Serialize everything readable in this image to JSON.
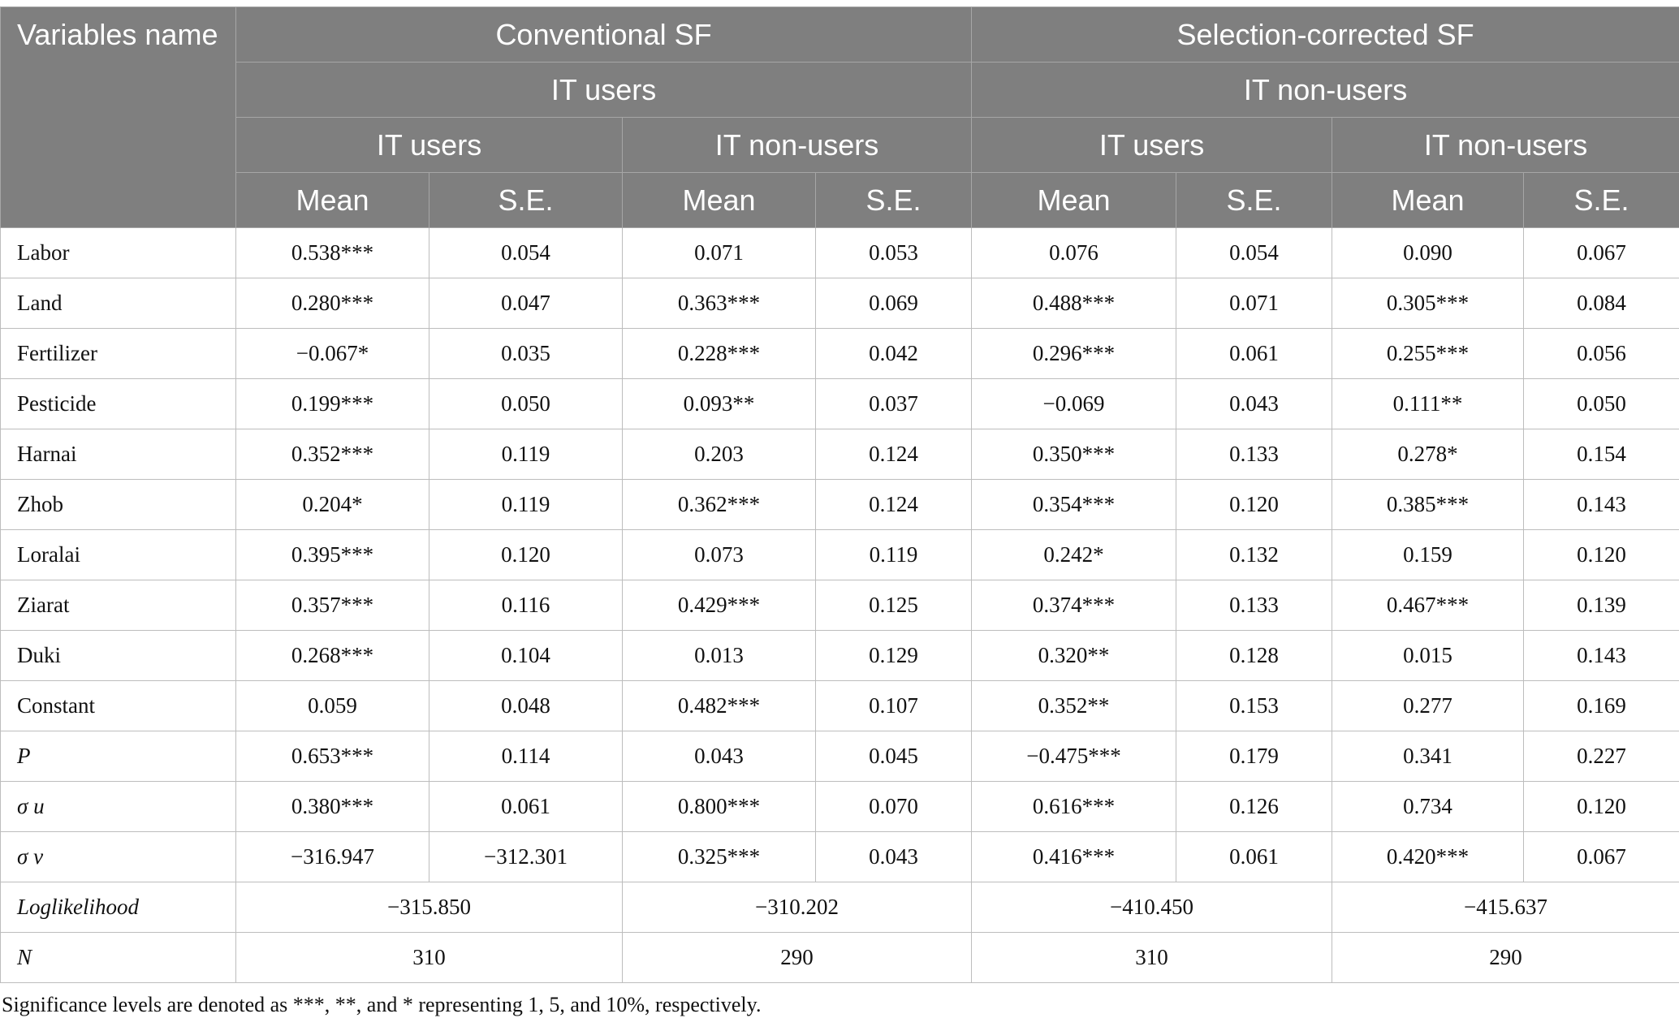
{
  "header": {
    "varname": "Variables name",
    "group_conventional": "Conventional SF",
    "group_selection": "Selection-corrected SF",
    "sub_conventional": "IT users",
    "sub_selection": "IT non-users",
    "col_it_users_1": "IT users",
    "col_it_nonusers_1": "IT non-users",
    "col_it_users_2": "IT users",
    "col_it_nonusers_2": "IT non-users",
    "mean": "Mean",
    "se": "S.E."
  },
  "rows": [
    {
      "label": "Labor",
      "cells": [
        "0.538***",
        "0.054",
        "0.071",
        "0.053",
        "0.076",
        "0.054",
        "0.090",
        "0.067"
      ]
    },
    {
      "label": "Land",
      "cells": [
        "0.280***",
        "0.047",
        "0.363***",
        "0.069",
        "0.488***",
        "0.071",
        "0.305***",
        "0.084"
      ]
    },
    {
      "label": "Fertilizer",
      "cells": [
        "−0.067*",
        "0.035",
        "0.228***",
        "0.042",
        "0.296***",
        "0.061",
        "0.255***",
        "0.056"
      ]
    },
    {
      "label": "Pesticide",
      "cells": [
        "0.199***",
        "0.050",
        "0.093**",
        "0.037",
        "−0.069",
        "0.043",
        "0.111**",
        "0.050"
      ]
    },
    {
      "label": "Harnai",
      "cells": [
        "0.352***",
        "0.119",
        "0.203",
        "0.124",
        "0.350***",
        "0.133",
        "0.278*",
        "0.154"
      ]
    },
    {
      "label": "Zhob",
      "cells": [
        "0.204*",
        "0.119",
        "0.362***",
        "0.124",
        "0.354***",
        "0.120",
        "0.385***",
        "0.143"
      ]
    },
    {
      "label": "Loralai",
      "cells": [
        "0.395***",
        "0.120",
        "0.073",
        "0.119",
        "0.242*",
        "0.132",
        "0.159",
        "0.120"
      ]
    },
    {
      "label": "Ziarat",
      "cells": [
        "0.357***",
        "0.116",
        "0.429***",
        "0.125",
        "0.374***",
        "0.133",
        "0.467***",
        "0.139"
      ]
    },
    {
      "label": "Duki",
      "cells": [
        "0.268***",
        "0.104",
        "0.013",
        "0.129",
        "0.320**",
        "0.128",
        "0.015",
        "0.143"
      ]
    },
    {
      "label": "Constant",
      "cells": [
        "0.059",
        "0.048",
        "0.482***",
        "0.107",
        "0.352**",
        "0.153",
        "0.277",
        "0.169"
      ]
    },
    {
      "label": "P",
      "cells": [
        "0.653***",
        "0.114",
        "0.043",
        "0.045",
        "−0.475***",
        "0.179",
        "0.341",
        "0.227"
      ]
    },
    {
      "label": "σ u",
      "cells": [
        "0.380***",
        "0.061",
        "0.800***",
        "0.070",
        "0.616***",
        "0.126",
        "0.734",
        "0.120"
      ]
    },
    {
      "label": "σ v",
      "cells": [
        "−316.947",
        "−312.301",
        "0.325***",
        "0.043",
        "0.416***",
        "0.061",
        "0.420***",
        "0.067"
      ]
    }
  ],
  "loglik": {
    "label": "Loglikelihood",
    "values": [
      "−315.850",
      "−310.202",
      "−410.450",
      "−415.637"
    ]
  },
  "n": {
    "label": "N",
    "values": [
      "310",
      "290",
      "310",
      "290"
    ]
  },
  "note": "Significance levels are denoted as ***, **, and * representing 1, 5, and 10%, respectively."
}
